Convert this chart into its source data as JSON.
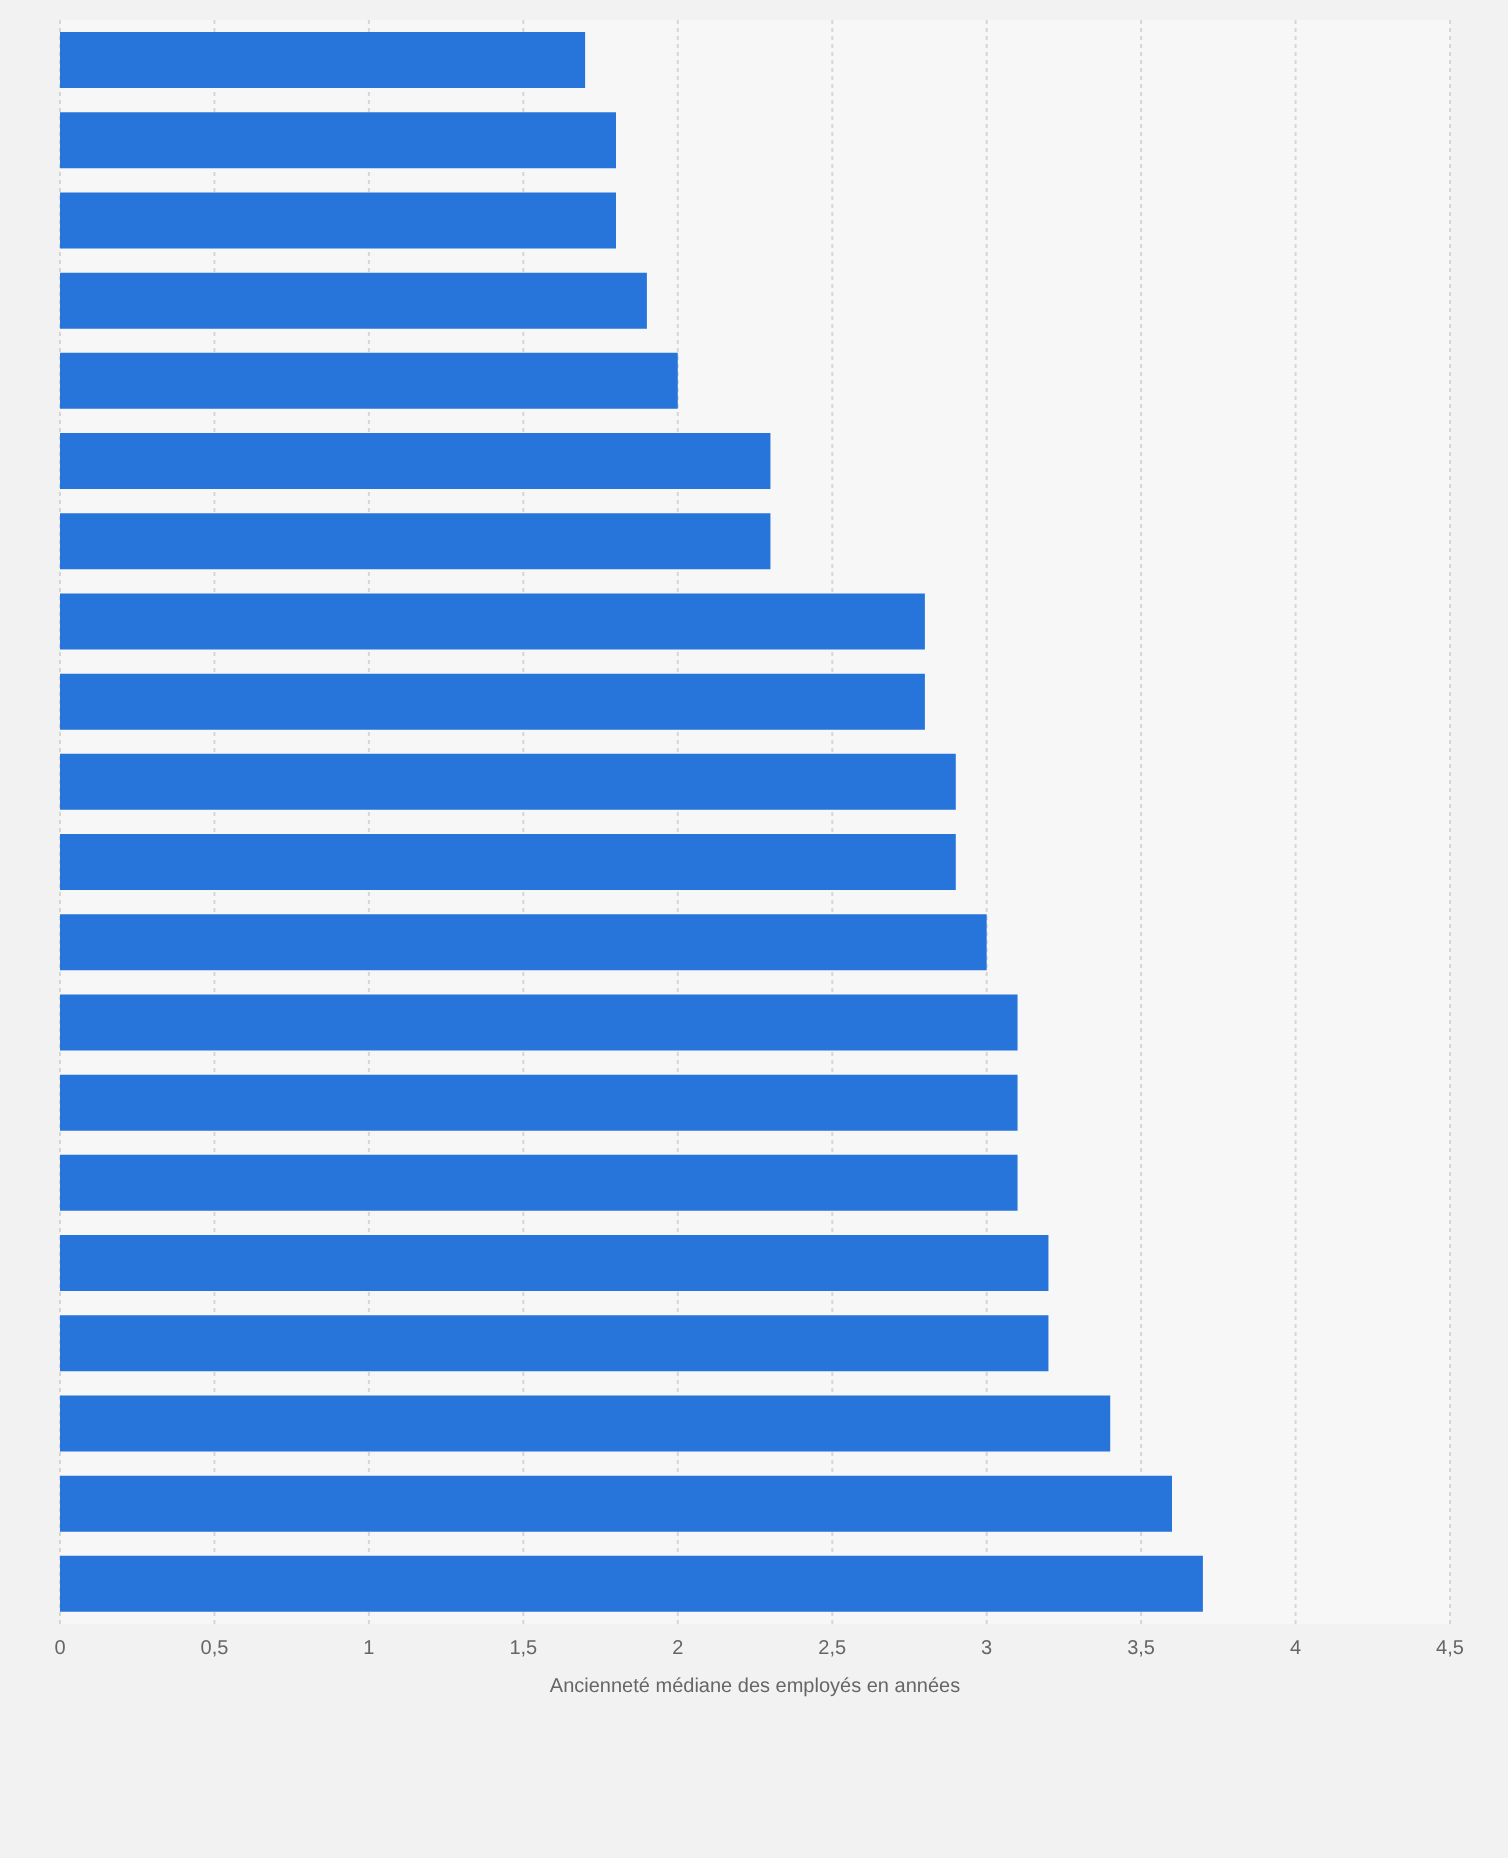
{
  "chart_data": {
    "type": "bar",
    "orientation": "horizontal",
    "xlabel": "Ancienneté médiane des employés en années",
    "categories": [
      null,
      null,
      null,
      null,
      null,
      null,
      null,
      null,
      null,
      null,
      null,
      null,
      null,
      null,
      null,
      null,
      null,
      null,
      null,
      null
    ],
    "values": [
      1.7,
      1.8,
      1.8,
      1.9,
      2.0,
      2.3,
      2.3,
      2.8,
      2.8,
      2.9,
      2.9,
      3.0,
      3.1,
      3.1,
      3.1,
      3.2,
      3.2,
      3.4,
      3.6,
      3.7
    ],
    "color": "#2775da",
    "xlim": [
      0,
      4.5
    ],
    "xticks": [
      0,
      {
        "value": 0.5,
        "label": "0,5"
      },
      1,
      {
        "value": 1.5,
        "label": "1,5"
      },
      2,
      {
        "value": 2.5,
        "label": "2,5"
      },
      3,
      {
        "value": 3.5,
        "label": "3,5"
      },
      4,
      {
        "value": 4.5,
        "label": "4,5"
      }
    ],
    "grid": "x",
    "tick_labels": "x"
  }
}
